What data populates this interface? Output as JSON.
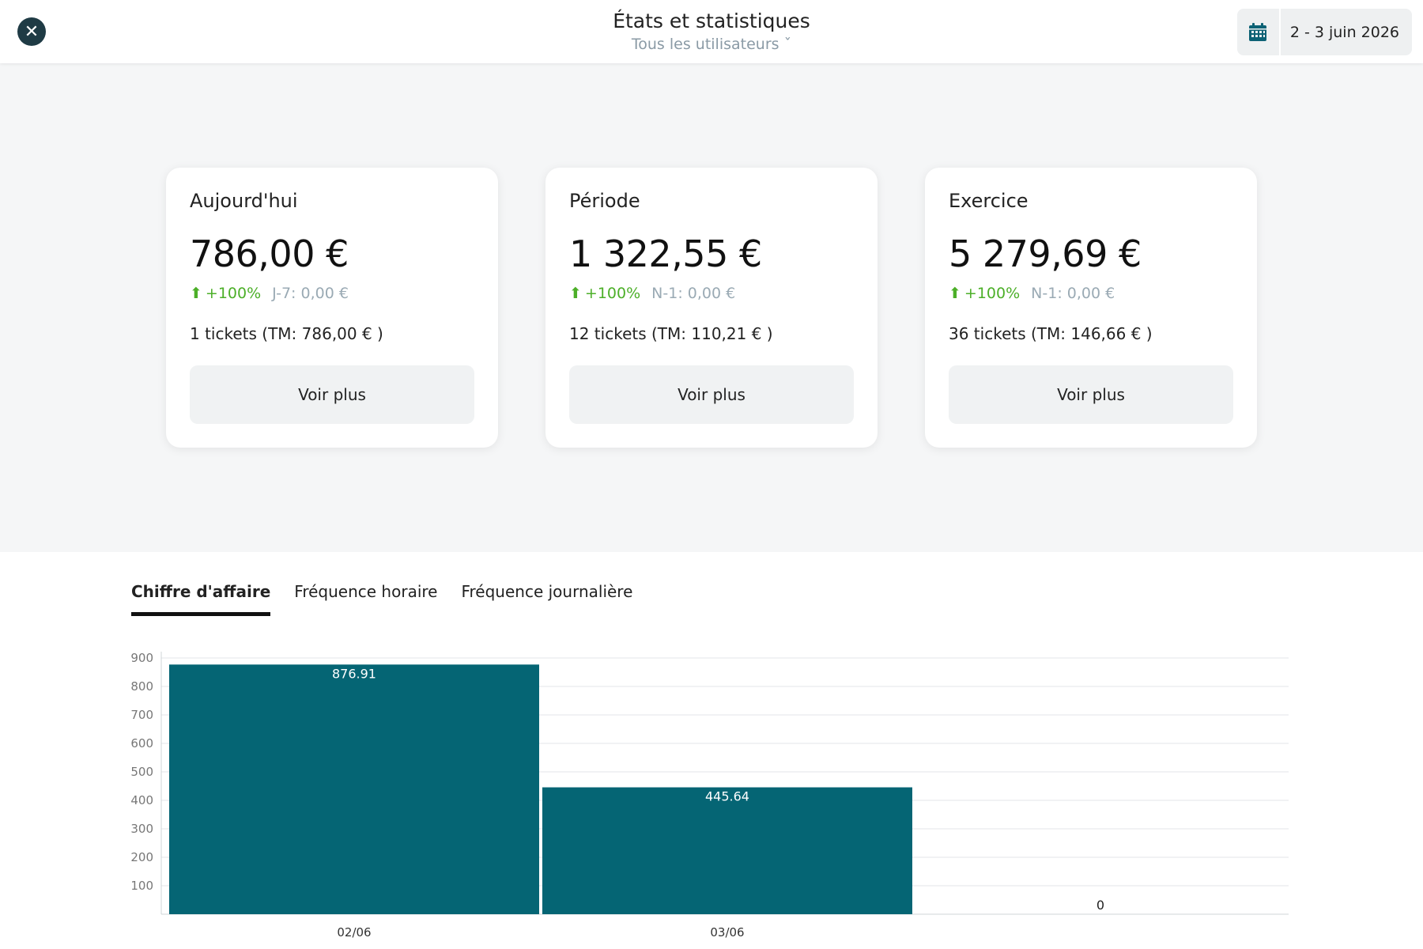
{
  "header": {
    "title": "États et statistiques",
    "subtitle": "Tous les utilisateurs ˇ",
    "date_range": "2 - 3 juin 2026",
    "close_icon": "close-icon",
    "calendar_icon": "calendar-icon"
  },
  "cards": [
    {
      "label": "Aujourd'hui",
      "amount": "786,00 €",
      "trend": "+100%",
      "reference": "J-7: 0,00 €",
      "tickets": "1 tickets (TM: 786,00 € )",
      "button": "Voir plus"
    },
    {
      "label": "Période",
      "amount": "1 322,55 €",
      "trend": "+100%",
      "reference": "N-1: 0,00 €",
      "tickets": "12 tickets (TM: 110,21 € )",
      "button": "Voir plus"
    },
    {
      "label": "Exercice",
      "amount": "5 279,69 €",
      "trend": "+100%",
      "reference": "N-1: 0,00 €",
      "tickets": "36 tickets (TM: 146,66 € )",
      "button": "Voir plus"
    }
  ],
  "tabs": [
    {
      "label": "Chiffre d'affaire",
      "active": true
    },
    {
      "label": "Fréquence horaire",
      "active": false
    },
    {
      "label": "Fréquence journalière",
      "active": false
    }
  ],
  "colors": {
    "bar": "#056574",
    "trend_up": "#4caf28",
    "close_button": "#1f3b45"
  },
  "chart_data": {
    "type": "bar",
    "categories": [
      "02/06",
      "03/06",
      ""
    ],
    "values": [
      876.91,
      445.64,
      0
    ],
    "data_labels": [
      "876.91",
      "445.64",
      "0"
    ],
    "y_ticks": [
      "100",
      "200",
      "300",
      "400",
      "500",
      "600",
      "700",
      "800",
      "900"
    ],
    "ylim": [
      0,
      900
    ],
    "grid": true,
    "legend": "none"
  }
}
